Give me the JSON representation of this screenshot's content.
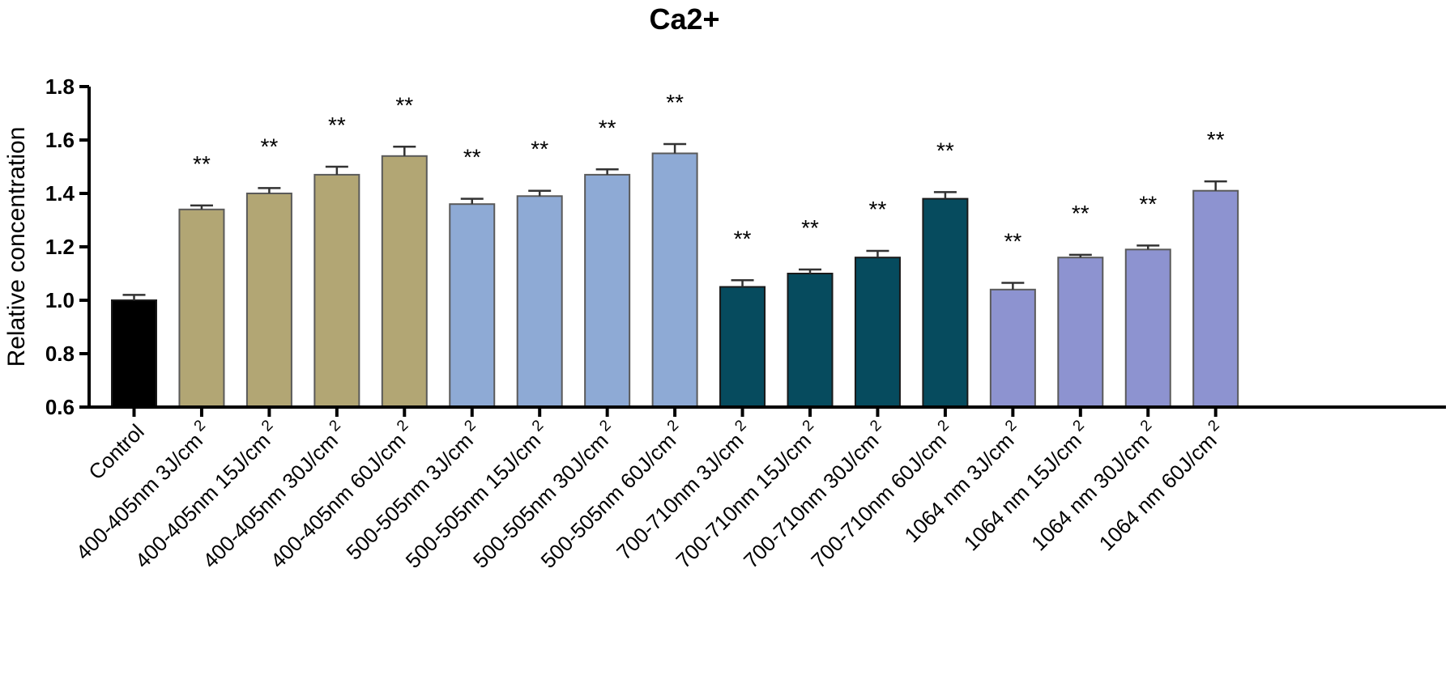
{
  "chart_data": {
    "type": "bar",
    "title": "Ca2+",
    "xlabel": "",
    "ylabel": "Relative concentration",
    "ylim": [
      0.6,
      1.8
    ],
    "yticks": [
      0.6,
      0.8,
      1.0,
      1.2,
      1.4,
      1.6,
      1.8
    ],
    "ytick_labels": [
      "0.6",
      "0.8",
      "1.0",
      "1.2",
      "1.4",
      "1.6",
      "1.8"
    ],
    "categories": [
      "Control",
      "400-405nm 3J/cm",
      "400-405nm 15J/cm",
      "400-405nm 30J/cm",
      "400-405nm 60J/cm",
      "500-505nm 3J/cm",
      "500-505nm 15J/cm",
      "500-505nm 30J/cm",
      "500-505nm 60J/cm",
      "700-710nm 3J/cm",
      "700-710nm 15J/cm",
      "700-710nm 30J/cm",
      "700-710nm 60J/cm",
      "1064 nm 3J/cm",
      "1064 nm 15J/cm",
      "1064 nm 30J/cm",
      "1064 nm 60J/cm"
    ],
    "category_superscripts": [
      "",
      "2",
      "2",
      "2",
      "2",
      "2",
      "2",
      "2",
      "2",
      "2",
      "2",
      "2",
      "2",
      "2",
      "2",
      "2",
      "2"
    ],
    "values": [
      1.0,
      1.34,
      1.4,
      1.47,
      1.54,
      1.36,
      1.39,
      1.47,
      1.55,
      1.05,
      1.1,
      1.16,
      1.38,
      1.04,
      1.16,
      1.19,
      1.41
    ],
    "errors": [
      0.02,
      0.015,
      0.02,
      0.03,
      0.035,
      0.02,
      0.02,
      0.02,
      0.035,
      0.025,
      0.015,
      0.025,
      0.025,
      0.025,
      0.01,
      0.015,
      0.035
    ],
    "significance": [
      "",
      "**",
      "**",
      "**",
      "**",
      "**",
      "**",
      "**",
      "**",
      "**",
      "**",
      "**",
      "**",
      "**",
      "**",
      "**",
      "**"
    ],
    "colors": [
      "#000000",
      "#b2a674",
      "#b2a674",
      "#b2a674",
      "#b2a674",
      "#8eaad5",
      "#8eaad5",
      "#8eaad5",
      "#8eaad5",
      "#064b5e",
      "#064b5e",
      "#064b5e",
      "#064b5e",
      "#8d93d0",
      "#8d93d0",
      "#8d93d0",
      "#8d93d0"
    ],
    "legend": "none",
    "grid": false
  }
}
